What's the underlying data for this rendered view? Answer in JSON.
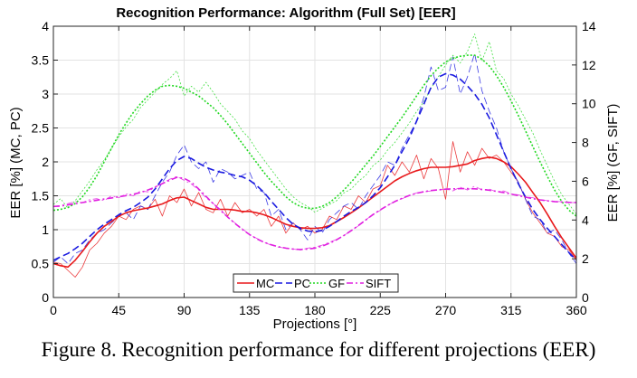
{
  "caption": "Figure 8. Recognition performance for different projections (EER)",
  "chart_data": {
    "type": "line",
    "title": "Recognition Performance: Algorithm (Full Set) [EER]",
    "xlabel": "Projections [°]",
    "ylabel_left": "EER [%] (MC, PC)",
    "ylabel_right": "EER [%] (GF, SIFT)",
    "xlim": [
      0,
      360
    ],
    "ylim_left": [
      0,
      4
    ],
    "ylim_right": [
      0,
      14
    ],
    "x_ticks": [
      0,
      45,
      90,
      135,
      180,
      225,
      270,
      315,
      360
    ],
    "y_left_ticks": [
      "0",
      "0.5",
      "1",
      "1.5",
      "2",
      "2.5",
      "3",
      "3.5",
      "4"
    ],
    "y_left_tick_values": [
      0,
      0.5,
      1,
      1.5,
      2,
      2.5,
      3,
      3.5,
      4
    ],
    "y_right_ticks": [
      "0",
      "2",
      "4",
      "6",
      "8",
      "10",
      "12",
      "14"
    ],
    "y_right_tick_values": [
      0,
      2,
      4,
      6,
      8,
      10,
      12,
      14
    ],
    "grid": true,
    "legend_position": "bottom-center",
    "x": [
      0,
      5,
      10,
      15,
      20,
      25,
      30,
      35,
      40,
      45,
      50,
      55,
      60,
      65,
      70,
      75,
      80,
      85,
      90,
      95,
      100,
      105,
      110,
      115,
      120,
      125,
      130,
      135,
      140,
      145,
      150,
      155,
      160,
      165,
      170,
      175,
      180,
      185,
      190,
      195,
      200,
      205,
      210,
      215,
      220,
      225,
      230,
      235,
      240,
      245,
      250,
      255,
      260,
      265,
      270,
      275,
      280,
      285,
      290,
      295,
      300,
      305,
      310,
      315,
      320,
      325,
      330,
      335,
      340,
      345,
      350,
      355,
      360
    ],
    "series": [
      {
        "name": "MC",
        "axis": "left",
        "color": "#e8191b",
        "dash": "solid",
        "kind": "raw",
        "values": [
          0.52,
          0.5,
          0.4,
          0.3,
          0.45,
          0.7,
          0.8,
          0.95,
          1.05,
          1.2,
          1.15,
          1.3,
          1.35,
          1.3,
          1.45,
          1.2,
          1.5,
          1.4,
          1.6,
          1.35,
          1.55,
          1.3,
          1.25,
          1.45,
          1.2,
          1.4,
          1.25,
          1.3,
          1.2,
          1.3,
          1.05,
          1.2,
          0.95,
          1.1,
          1.0,
          1.05,
          0.95,
          1.0,
          1.2,
          1.15,
          1.35,
          1.3,
          1.5,
          1.4,
          1.6,
          1.65,
          1.95,
          1.8,
          2.0,
          1.85,
          2.1,
          1.75,
          2.05,
          1.9,
          1.45,
          2.3,
          1.85,
          2.15,
          1.95,
          2.2,
          2.05,
          2.1,
          2.0,
          1.85,
          1.7,
          1.45,
          1.25,
          1.1,
          0.95,
          0.9,
          0.75,
          0.7,
          0.55
        ]
      },
      {
        "name": "MC",
        "axis": "left",
        "color": "#e8191b",
        "dash": "solid",
        "kind": "trend",
        "values": [
          0.5,
          0.47,
          0.45,
          0.55,
          0.68,
          0.82,
          0.95,
          1.05,
          1.12,
          1.2,
          1.25,
          1.28,
          1.3,
          1.32,
          1.35,
          1.38,
          1.43,
          1.47,
          1.48,
          1.43,
          1.38,
          1.33,
          1.3,
          1.3,
          1.3,
          1.29,
          1.27,
          1.27,
          1.25,
          1.22,
          1.18,
          1.13,
          1.08,
          1.05,
          1.03,
          1.02,
          1.02,
          1.03,
          1.06,
          1.12,
          1.18,
          1.25,
          1.32,
          1.4,
          1.48,
          1.56,
          1.64,
          1.72,
          1.78,
          1.83,
          1.87,
          1.9,
          1.92,
          1.92,
          1.92,
          1.93,
          1.95,
          1.97,
          2.02,
          2.05,
          2.07,
          2.05,
          2.0,
          1.93,
          1.82,
          1.7,
          1.55,
          1.4,
          1.23,
          1.05,
          0.88,
          0.73,
          0.58
        ]
      },
      {
        "name": "PC",
        "axis": "left",
        "color": "#1a1ae0",
        "dash": "8,4",
        "kind": "raw",
        "values": [
          0.52,
          0.6,
          0.5,
          0.65,
          0.7,
          0.85,
          0.95,
          1.0,
          1.1,
          1.2,
          1.25,
          1.15,
          1.35,
          1.3,
          1.5,
          1.7,
          1.85,
          2.1,
          2.25,
          2.0,
          1.9,
          2.0,
          1.7,
          1.9,
          1.85,
          1.75,
          1.8,
          1.85,
          1.6,
          1.55,
          1.2,
          1.3,
          1.0,
          1.1,
          1.0,
          0.85,
          1.05,
          0.95,
          1.15,
          1.25,
          1.35,
          1.4,
          1.3,
          1.5,
          1.65,
          1.8,
          2.0,
          1.95,
          2.2,
          2.4,
          2.6,
          2.95,
          3.4,
          3.05,
          3.1,
          3.55,
          3.0,
          3.25,
          3.6,
          3.05,
          2.75,
          2.5,
          2.15,
          1.9,
          1.7,
          1.45,
          1.2,
          1.15,
          0.95,
          1.0,
          0.85,
          0.65,
          0.5
        ]
      },
      {
        "name": "PC",
        "axis": "left",
        "color": "#1a1ae0",
        "dash": "8,4",
        "kind": "trend",
        "values": [
          0.55,
          0.6,
          0.65,
          0.72,
          0.8,
          0.9,
          1.0,
          1.08,
          1.15,
          1.22,
          1.28,
          1.33,
          1.4,
          1.48,
          1.6,
          1.75,
          1.9,
          2.02,
          2.08,
          2.05,
          1.98,
          1.92,
          1.88,
          1.85,
          1.83,
          1.8,
          1.78,
          1.73,
          1.65,
          1.55,
          1.42,
          1.3,
          1.18,
          1.08,
          1.02,
          0.98,
          0.97,
          0.99,
          1.05,
          1.12,
          1.2,
          1.27,
          1.33,
          1.4,
          1.5,
          1.62,
          1.78,
          1.95,
          2.15,
          2.35,
          2.6,
          2.85,
          3.1,
          3.25,
          3.3,
          3.28,
          3.22,
          3.12,
          3.0,
          2.85,
          2.65,
          2.4,
          2.15,
          1.9,
          1.68,
          1.48,
          1.3,
          1.15,
          1.02,
          0.9,
          0.78,
          0.66,
          0.55
        ]
      },
      {
        "name": "GF",
        "axis": "right",
        "color": "#22d822",
        "dash": "2,2",
        "kind": "raw",
        "values": [
          4.8,
          5.1,
          4.6,
          5.0,
          5.5,
          6.0,
          6.6,
          7.1,
          7.7,
          8.3,
          8.8,
          9.2,
          9.8,
          10.2,
          10.6,
          11.0,
          11.3,
          11.7,
          10.4,
          10.9,
          10.6,
          11.1,
          10.6,
          10.0,
          9.6,
          9.2,
          8.6,
          8.2,
          7.6,
          7.1,
          6.6,
          6.1,
          5.6,
          5.2,
          4.9,
          4.7,
          4.4,
          4.6,
          4.8,
          5.0,
          5.4,
          5.6,
          6.0,
          6.3,
          6.8,
          7.1,
          7.6,
          8.0,
          8.5,
          9.0,
          9.6,
          10.1,
          10.8,
          11.4,
          12.0,
          12.5,
          12.1,
          12.7,
          13.6,
          12.2,
          13.2,
          11.7,
          11.3,
          10.5,
          9.9,
          9.2,
          8.5,
          7.6,
          6.8,
          6.0,
          5.3,
          4.8,
          4.3
        ]
      },
      {
        "name": "GF",
        "axis": "right",
        "color": "#22d822",
        "dash": "2,2",
        "kind": "trend",
        "values": [
          4.5,
          4.55,
          4.65,
          4.85,
          5.2,
          5.7,
          6.3,
          7.0,
          7.7,
          8.4,
          9.0,
          9.55,
          10.0,
          10.4,
          10.7,
          10.9,
          10.95,
          10.9,
          10.8,
          10.6,
          10.4,
          10.1,
          9.8,
          9.4,
          8.95,
          8.45,
          7.95,
          7.45,
          6.95,
          6.45,
          6.0,
          5.6,
          5.2,
          4.9,
          4.7,
          4.6,
          4.6,
          4.7,
          4.9,
          5.2,
          5.55,
          5.95,
          6.4,
          6.85,
          7.3,
          7.8,
          8.3,
          8.8,
          9.3,
          9.85,
          10.4,
          10.95,
          11.45,
          11.85,
          12.15,
          12.35,
          12.45,
          12.5,
          12.5,
          12.3,
          11.95,
          11.45,
          10.85,
          10.15,
          9.4,
          8.6,
          7.8,
          7.0,
          6.25,
          5.55,
          4.95,
          4.5,
          4.2
        ]
      },
      {
        "name": "SIFT",
        "axis": "right",
        "color": "#e020e0",
        "dash": "7,3,2,3",
        "kind": "raw",
        "values": [
          4.7,
          4.75,
          4.85,
          4.95,
          4.9,
          5.05,
          5.1,
          5.0,
          5.25,
          5.15,
          5.35,
          5.25,
          5.5,
          5.45,
          5.7,
          5.9,
          6.1,
          6.25,
          6.05,
          5.85,
          5.55,
          5.15,
          4.85,
          4.55,
          4.15,
          3.85,
          3.55,
          3.25,
          3.05,
          2.85,
          2.7,
          2.6,
          2.55,
          2.5,
          2.45,
          2.55,
          2.6,
          2.7,
          2.85,
          3.0,
          3.2,
          3.45,
          3.7,
          4.0,
          4.3,
          4.5,
          4.75,
          4.95,
          5.1,
          5.25,
          5.4,
          5.45,
          5.5,
          5.55,
          5.6,
          5.5,
          5.7,
          5.55,
          5.75,
          5.55,
          5.6,
          5.45,
          5.5,
          5.35,
          5.3,
          5.2,
          5.15,
          5.05,
          5.0,
          4.95,
          4.95,
          4.9,
          4.9
        ]
      },
      {
        "name": "SIFT",
        "axis": "right",
        "color": "#e020e0",
        "dash": "7,3,2,3",
        "kind": "trend",
        "values": [
          4.7,
          4.72,
          4.78,
          4.84,
          4.9,
          4.96,
          5.02,
          5.08,
          5.14,
          5.2,
          5.26,
          5.33,
          5.42,
          5.55,
          5.7,
          5.88,
          6.05,
          6.2,
          6.15,
          5.95,
          5.6,
          5.22,
          4.85,
          4.5,
          4.15,
          3.82,
          3.52,
          3.25,
          3.03,
          2.85,
          2.72,
          2.62,
          2.55,
          2.5,
          2.48,
          2.5,
          2.55,
          2.65,
          2.8,
          2.98,
          3.2,
          3.45,
          3.72,
          4.0,
          4.28,
          4.52,
          4.75,
          4.95,
          5.12,
          5.27,
          5.38,
          5.46,
          5.52,
          5.56,
          5.59,
          5.61,
          5.62,
          5.62,
          5.61,
          5.58,
          5.54,
          5.48,
          5.42,
          5.34,
          5.26,
          5.18,
          5.1,
          5.04,
          4.99,
          4.95,
          4.93,
          4.91,
          4.9
        ]
      }
    ],
    "legend": [
      {
        "label": "MC",
        "color": "#e8191b",
        "dash": "solid"
      },
      {
        "label": "PC",
        "color": "#1a1ae0",
        "dash": "8,4"
      },
      {
        "label": "GF",
        "color": "#22d822",
        "dash": "2,2"
      },
      {
        "label": "SIFT",
        "color": "#e020e0",
        "dash": "7,3,2,3"
      }
    ]
  }
}
